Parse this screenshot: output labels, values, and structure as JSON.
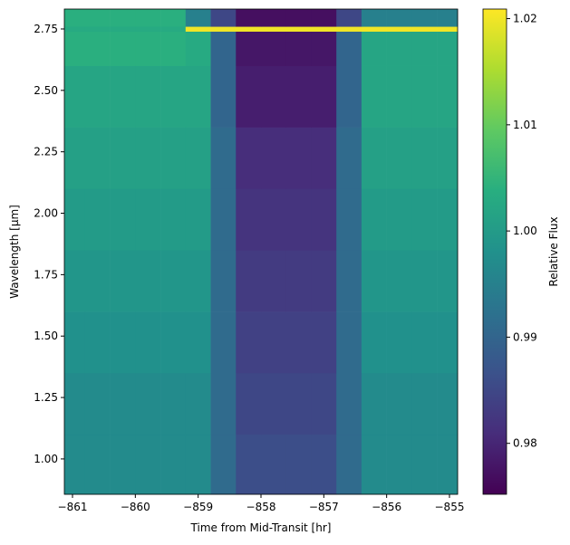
{
  "chart_data": {
    "type": "heatmap",
    "colormap": "viridis",
    "xlabel": "Time from Mid-Transit [hr]",
    "ylabel": "Wavelength [μm]",
    "colorbar_label": "Relative Flux",
    "x": [
      -861.13,
      -860.8,
      -860.4,
      -860.0,
      -859.6,
      -859.2,
      -858.8,
      -858.4,
      -858.0,
      -857.6,
      -857.2,
      -856.8,
      -856.4,
      -856.0,
      -855.6,
      -855.2,
      -854.87
    ],
    "y": [
      0.856,
      1.1,
      1.35,
      1.6,
      1.85,
      2.1,
      2.35,
      2.6,
      2.74,
      2.76,
      2.831
    ],
    "z": [
      [
        0.997,
        0.997,
        0.997,
        0.997,
        0.997,
        0.997,
        0.991,
        0.986,
        0.986,
        0.986,
        0.986,
        0.991,
        0.997,
        0.997,
        0.997,
        0.997
      ],
      [
        0.997,
        0.997,
        0.997,
        0.997,
        0.997,
        0.997,
        0.991,
        0.985,
        0.985,
        0.985,
        0.985,
        0.991,
        0.997,
        0.997,
        0.997,
        0.997
      ],
      [
        0.998,
        0.998,
        0.998,
        0.998,
        0.998,
        0.998,
        0.991,
        0.984,
        0.984,
        0.984,
        0.984,
        0.991,
        0.998,
        0.998,
        0.998,
        0.998
      ],
      [
        0.999,
        0.999,
        0.999,
        0.999,
        0.999,
        0.999,
        0.991,
        0.983,
        0.983,
        0.983,
        0.983,
        0.991,
        0.999,
        0.999,
        0.999,
        0.999
      ],
      [
        1.0,
        1.0,
        1.0,
        1.0,
        1.0,
        1.0,
        0.991,
        0.982,
        0.982,
        0.982,
        0.982,
        0.991,
        1.0,
        1.0,
        1.0,
        1.0
      ],
      [
        1.001,
        1.001,
        1.001,
        1.001,
        1.001,
        1.001,
        0.991,
        0.981,
        0.981,
        0.981,
        0.981,
        0.991,
        1.001,
        1.001,
        1.001,
        1.001
      ],
      [
        1.002,
        1.002,
        1.002,
        1.002,
        1.002,
        1.002,
        0.99,
        0.979,
        0.979,
        0.979,
        0.979,
        0.99,
        1.002,
        1.002,
        1.002,
        1.002
      ],
      [
        1.004,
        1.004,
        1.004,
        1.004,
        1.004,
        1.003,
        0.99,
        0.978,
        0.978,
        0.978,
        0.978,
        0.99,
        1.002,
        1.002,
        1.002,
        1.002
      ],
      [
        1.003,
        1.003,
        1.003,
        1.003,
        1.003,
        1.02,
        1.02,
        1.02,
        1.02,
        1.02,
        1.02,
        1.02,
        1.02,
        1.02,
        1.02,
        1.02
      ],
      [
        1.004,
        1.004,
        1.004,
        1.004,
        1.004,
        0.995,
        0.985,
        0.977,
        0.977,
        0.977,
        0.977,
        0.985,
        0.995,
        0.995,
        0.995,
        0.995
      ]
    ],
    "xlim": [
      -861.13,
      -854.87
    ],
    "xticks": [
      {
        "value": -861,
        "label": "−861"
      },
      {
        "value": -860,
        "label": "−860"
      },
      {
        "value": -859,
        "label": "−859"
      },
      {
        "value": -858,
        "label": "−858"
      },
      {
        "value": -857,
        "label": "−857"
      },
      {
        "value": -856,
        "label": "−856"
      },
      {
        "value": -855,
        "label": "−855"
      }
    ],
    "ylim": [
      0.856,
      2.831
    ],
    "yticks": [
      {
        "value": 1,
        "label": "1.00"
      },
      1.25,
      {
        "value": 1.5,
        "label": "1.50"
      },
      1.75,
      {
        "value": 2,
        "label": "2.00"
      },
      2.25,
      {
        "value": 2.5,
        "label": "2.50"
      },
      2.75
    ],
    "clim": [
      0.9752,
      1.0209
    ],
    "cticks": [
      0.98,
      0.99,
      {
        "value": 1,
        "label": "1.00"
      },
      1.01,
      1.02
    ]
  }
}
